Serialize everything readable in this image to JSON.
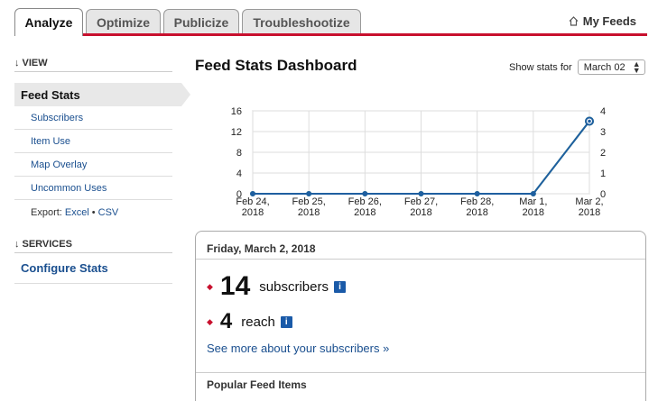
{
  "tabs": [
    {
      "label": "Analyze",
      "active": true
    },
    {
      "label": "Optimize"
    },
    {
      "label": "Publicize"
    },
    {
      "label": "Troubleshootize"
    }
  ],
  "my_feeds": {
    "label": "My Feeds",
    "icon": "home-icon"
  },
  "sidebar": {
    "view_heading": "VIEW",
    "active_item": "Feed Stats",
    "items": [
      "Subscribers",
      "Item Use",
      "Map Overlay",
      "Uncommon Uses"
    ],
    "export_label": "Export:",
    "export_excel": "Excel",
    "export_sep": "•",
    "export_csv": "CSV",
    "services_heading": "SERVICES",
    "configure": "Configure Stats"
  },
  "main": {
    "title": "Feed Stats Dashboard",
    "show_stats_label": "Show stats for",
    "date_select": "March 02"
  },
  "chart_data": {
    "type": "line",
    "categories": [
      "Feb 24, 2018",
      "Feb 25, 2018",
      "Feb 26, 2018",
      "Feb 27, 2018",
      "Feb 28, 2018",
      "Mar 1, 2018",
      "Mar 2, 2018"
    ],
    "category_lines": [
      [
        "Feb 24,",
        "2018"
      ],
      [
        "Feb 25,",
        "2018"
      ],
      [
        "Feb 26,",
        "2018"
      ],
      [
        "Feb 27,",
        "2018"
      ],
      [
        "Feb 28,",
        "2018"
      ],
      [
        "Mar 1,",
        "2018"
      ],
      [
        "Mar 2,",
        "2018"
      ]
    ],
    "y_left_ticks": [
      0,
      4,
      8,
      12,
      16
    ],
    "y_right_ticks": [
      0,
      1,
      2,
      3,
      4
    ],
    "y_left_range": [
      0,
      16
    ],
    "y_right_range": [
      0,
      4
    ],
    "series": [
      {
        "values": [
          0,
          0,
          0,
          0,
          0,
          0,
          14
        ],
        "axis": "left",
        "color": "#1f5fa0"
      },
      {
        "values": [
          0,
          0,
          0,
          0,
          0,
          0,
          3.5
        ],
        "axis": "right",
        "color": "#7ac47f"
      }
    ],
    "grid": true
  },
  "stats_box": {
    "date": "Friday, March 2, 2018",
    "subscribers_value": "14",
    "subscribers_label": "subscribers",
    "reach_value": "4",
    "reach_label": "reach",
    "info_glyph": "i",
    "see_more": "See more about your subscribers »",
    "popular_heading": "Popular Feed Items"
  }
}
